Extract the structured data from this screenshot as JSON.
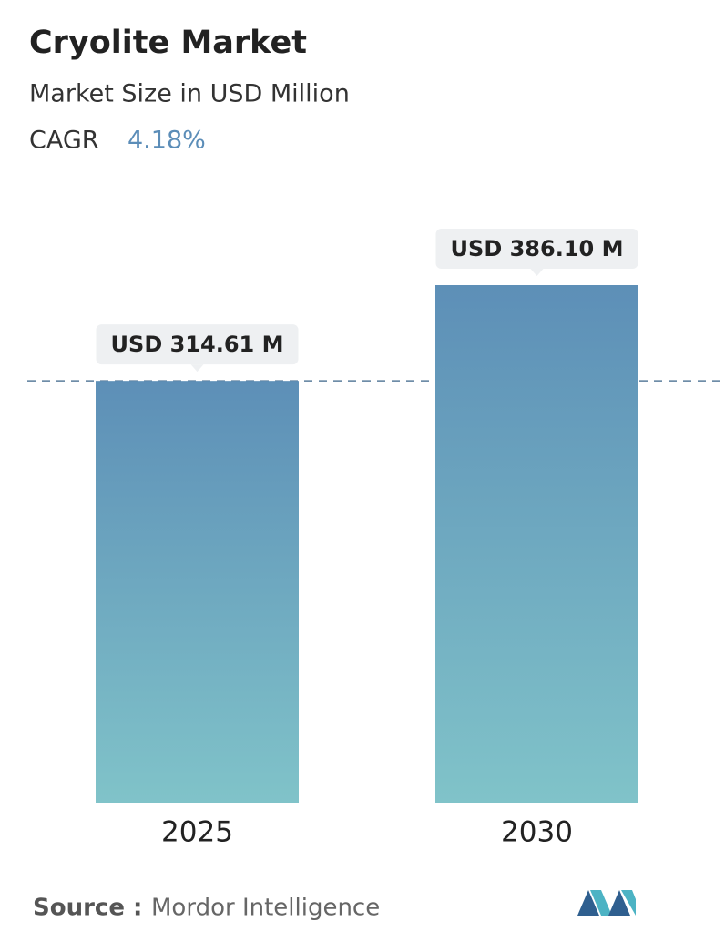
{
  "chart_data": {
    "type": "bar",
    "title": "Cryolite Market",
    "subtitle": "Market Size in USD Million",
    "cagr_label": "CAGR",
    "cagr_value": "4.18%",
    "categories": [
      "2025",
      "2030"
    ],
    "values": [
      314.61,
      386.1
    ],
    "value_labels": [
      "USD 314.61 M",
      "USD 386.10 M"
    ],
    "gradient": [
      "#5d8fb7",
      "#80c3c9"
    ],
    "reference_line": true,
    "source_label": "Source :",
    "source": "Mordor Intelligence"
  }
}
